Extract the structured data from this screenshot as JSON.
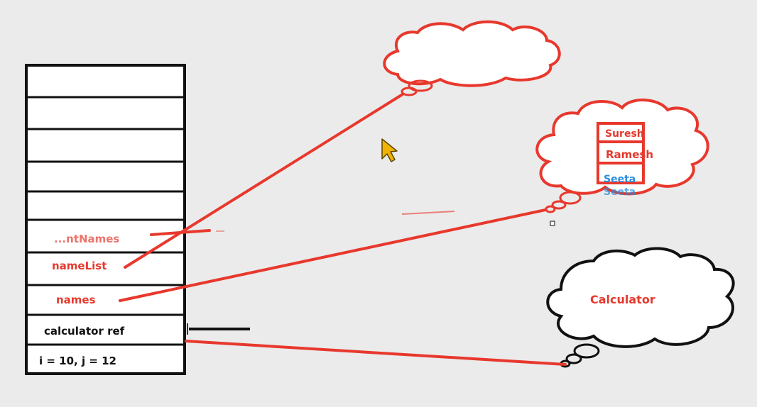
{
  "stack": {
    "labels": {
      "partial": "...ntNames",
      "name_list": "nameList",
      "names": "names",
      "calculator_ref": "calculator ref",
      "primitives": "i = 10, j = 12"
    }
  },
  "heap": {
    "string_array": {
      "items": [
        "Suresh",
        "Ramesh",
        "Seeta"
      ],
      "ghost_item": "Seeta"
    },
    "calculator_label": "Calculator"
  },
  "colors": {
    "background": "#ebebeb",
    "red": "#e8382d",
    "red_text": "#e53a2e",
    "blue_text": "#2a8ee0",
    "black": "#111111",
    "cursor": "#f0b400"
  }
}
